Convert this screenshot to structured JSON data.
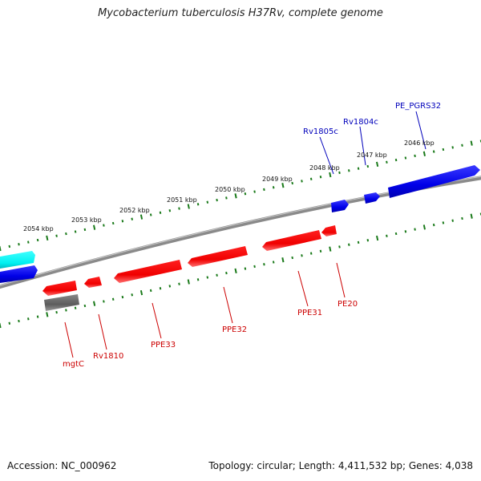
{
  "title": "Mycobacterium tuberculosis H37Rv, complete genome",
  "footer": {
    "accession": "Accession: NC_000962",
    "summary": "Topology: circular; Length: 4,411,532 bp; Genes: 4,038"
  },
  "colors": {
    "forward_gene": "#0a0af0",
    "reverse_gene": "#f00000",
    "selected_gene": "#00ffff",
    "pseudo_gene": "#666666",
    "backbone": "#777777",
    "ticks": "#1a7a1a",
    "forward_label": "#0000bb",
    "reverse_label": "#cc0000"
  },
  "ruler_labels": [
    "2054 kbp",
    "2053 kbp",
    "2052 kbp",
    "2051 kbp",
    "2050 kbp",
    "2049 kbp",
    "2048 kbp",
    "2047 kbp",
    "2046 kbp"
  ],
  "forward_gene_labels": [
    "Rv1805c",
    "Rv1804c",
    "PE_PGRS32"
  ],
  "reverse_gene_labels": [
    "mgtC",
    "Rv1810",
    "PPE33",
    "PPE32",
    "PPE31",
    "PE20"
  ]
}
